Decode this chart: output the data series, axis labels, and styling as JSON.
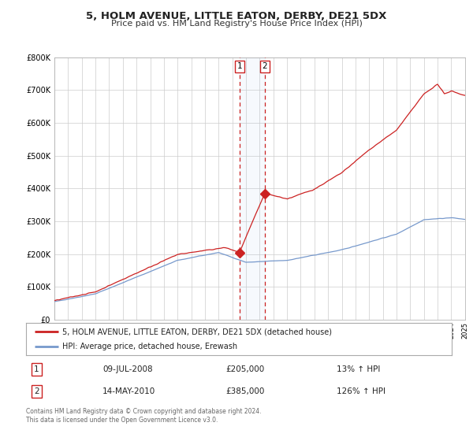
{
  "title": "5, HOLM AVENUE, LITTLE EATON, DERBY, DE21 5DX",
  "subtitle": "Price paid vs. HM Land Registry's House Price Index (HPI)",
  "legend_line1": "5, HOLM AVENUE, LITTLE EATON, DERBY, DE21 5DX (detached house)",
  "legend_line2": "HPI: Average price, detached house, Erewash",
  "red_color": "#cc2222",
  "blue_color": "#7799cc",
  "transaction1_date": "09-JUL-2008",
  "transaction1_price": 205000,
  "transaction1_hpi": "13% ↑ HPI",
  "transaction2_date": "14-MAY-2010",
  "transaction2_price": 385000,
  "transaction2_hpi": "126% ↑ HPI",
  "transaction1_year": 2008.52,
  "transaction2_year": 2010.37,
  "ylim": [
    0,
    800000
  ],
  "xlim_start": 1995,
  "xlim_end": 2025,
  "footer_line1": "Contains HM Land Registry data © Crown copyright and database right 2024.",
  "footer_line2": "This data is licensed under the Open Government Licence v3.0.",
  "background_color": "#ffffff",
  "grid_color": "#cccccc"
}
